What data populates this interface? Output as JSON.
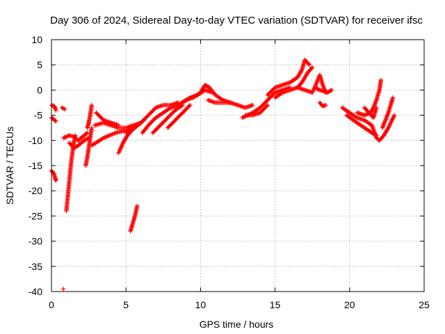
{
  "chart_data": {
    "type": "scatter",
    "title": "Day 306 of 2024, Sidereal Day-to-day VTEC variation (SDTVAR) for receiver ifsc",
    "xlabel": "GPS time / hours",
    "ylabel": "SDTVAR / TECUs",
    "xlim": [
      0,
      25
    ],
    "ylim": [
      -40,
      10
    ],
    "xticks": [
      0,
      5,
      10,
      15,
      20,
      25
    ],
    "yticks": [
      -40,
      -35,
      -30,
      -25,
      -20,
      -15,
      -10,
      -5,
      0,
      5,
      10
    ],
    "grid": true,
    "marker": "+",
    "color": "#ff0000",
    "series": [
      {
        "name": "SDTVAR",
        "segments": [
          [
            [
              0.0,
              -3.0
            ],
            [
              0.2,
              -3.2
            ],
            [
              0.3,
              -4.0
            ]
          ],
          [
            [
              0.0,
              -5.5
            ],
            [
              0.15,
              -5.8
            ],
            [
              0.3,
              -6.2
            ]
          ],
          [
            [
              0.0,
              -16.0
            ],
            [
              0.15,
              -16.5
            ],
            [
              0.25,
              -17.5
            ],
            [
              0.3,
              -18.0
            ]
          ],
          [
            [
              0.7,
              -3.5
            ],
            [
              0.9,
              -3.8
            ]
          ],
          [
            [
              0.8,
              -9.5
            ],
            [
              1.2,
              -9.0
            ],
            [
              1.5,
              -9.3
            ],
            [
              1.8,
              -10.0
            ],
            [
              2.0,
              -9.5
            ],
            [
              2.2,
              -9.0
            ],
            [
              2.4,
              -8.5
            ]
          ],
          [
            [
              1.2,
              -10.5
            ],
            [
              1.5,
              -11.5
            ],
            [
              1.8,
              -11.0
            ],
            [
              2.2,
              -10.0
            ],
            [
              2.5,
              -9.5
            ]
          ],
          [
            [
              1.0,
              -24.0
            ],
            [
              1.1,
              -21.0
            ],
            [
              1.2,
              -18.0
            ],
            [
              1.3,
              -15.0
            ],
            [
              1.4,
              -12.5
            ],
            [
              1.5,
              -10.5
            ],
            [
              1.6,
              -9.0
            ]
          ],
          [
            [
              2.3,
              -15.0
            ],
            [
              2.4,
              -13.5
            ],
            [
              2.5,
              -11.5
            ],
            [
              2.6,
              -9.5
            ],
            [
              2.7,
              -7.5
            ]
          ],
          [
            [
              2.4,
              -7.5
            ],
            [
              2.5,
              -6.5
            ],
            [
              2.6,
              -5.0
            ],
            [
              2.7,
              -3.0
            ]
          ],
          [
            [
              2.7,
              -11.0
            ],
            [
              3.5,
              -9.5
            ],
            [
              4.3,
              -8.5
            ],
            [
              5.0,
              -8.0
            ],
            [
              5.5,
              -7.5
            ]
          ],
          [
            [
              2.9,
              -7.0
            ],
            [
              3.5,
              -6.5
            ],
            [
              4.0,
              -7.0
            ],
            [
              4.5,
              -7.5
            ],
            [
              5.0,
              -7.5
            ],
            [
              5.5,
              -7.0
            ],
            [
              6.0,
              -6.5
            ]
          ],
          [
            [
              3.0,
              -4.5
            ],
            [
              3.5,
              -6.0
            ],
            [
              4.0,
              -6.5
            ],
            [
              4.5,
              -7.0
            ]
          ],
          [
            [
              4.5,
              -12.5
            ],
            [
              4.8,
              -10.5
            ],
            [
              5.1,
              -9.0
            ],
            [
              5.4,
              -8.0
            ],
            [
              5.8,
              -7.0
            ],
            [
              6.2,
              -6.0
            ]
          ],
          [
            [
              5.3,
              -28.0
            ],
            [
              5.45,
              -26.5
            ],
            [
              5.6,
              -25.0
            ],
            [
              5.75,
              -23.0
            ]
          ],
          [
            [
              5.0,
              -8.5
            ],
            [
              5.5,
              -7.5
            ],
            [
              6.0,
              -6.5
            ],
            [
              6.5,
              -5.0
            ],
            [
              7.0,
              -3.5
            ],
            [
              7.5,
              -3.0
            ],
            [
              8.0,
              -3.0
            ],
            [
              8.5,
              -2.5
            ]
          ],
          [
            [
              6.1,
              -8.5
            ],
            [
              6.5,
              -7.0
            ],
            [
              7.0,
              -5.5
            ],
            [
              7.5,
              -4.5
            ],
            [
              8.0,
              -3.5
            ],
            [
              8.5,
              -3.0
            ]
          ],
          [
            [
              6.8,
              -8.5
            ],
            [
              7.3,
              -7.0
            ],
            [
              7.8,
              -5.5
            ],
            [
              8.3,
              -4.0
            ],
            [
              8.8,
              -3.0
            ]
          ],
          [
            [
              7.8,
              -7.5
            ],
            [
              8.3,
              -6.0
            ],
            [
              8.8,
              -4.5
            ],
            [
              9.3,
              -3.0
            ]
          ],
          [
            [
              8.5,
              -3.0
            ],
            [
              9.0,
              -2.0
            ],
            [
              9.5,
              -1.5
            ],
            [
              10.0,
              -0.5
            ],
            [
              10.3,
              1.0
            ],
            [
              10.6,
              0.5
            ],
            [
              11.0,
              -1.0
            ],
            [
              11.5,
              -2.0
            ],
            [
              12.0,
              -2.5
            ]
          ],
          [
            [
              8.8,
              -2.5
            ],
            [
              9.3,
              -1.5
            ],
            [
              9.8,
              -1.0
            ],
            [
              10.3,
              0.0
            ],
            [
              10.8,
              -0.5
            ]
          ],
          [
            [
              10.5,
              -2.0
            ],
            [
              11.0,
              -2.5
            ],
            [
              11.5,
              -2.5
            ],
            [
              12.0,
              -2.5
            ],
            [
              12.5,
              -3.0
            ],
            [
              13.0,
              -3.5
            ],
            [
              13.5,
              -3.0
            ]
          ],
          [
            [
              12.8,
              -5.5
            ],
            [
              13.5,
              -4.5
            ],
            [
              14.0,
              -3.5
            ],
            [
              14.5,
              -2.0
            ],
            [
              15.0,
              -0.5
            ],
            [
              15.5,
              0.0
            ],
            [
              16.0,
              0.5
            ]
          ],
          [
            [
              13.0,
              -5.0
            ],
            [
              13.5,
              -5.0
            ],
            [
              14.0,
              -4.5
            ],
            [
              14.5,
              -3.0
            ]
          ],
          [
            [
              14.5,
              -1.0
            ],
            [
              15.0,
              0.5
            ],
            [
              15.5,
              1.0
            ],
            [
              16.0,
              1.5
            ],
            [
              16.5,
              2.5
            ],
            [
              16.8,
              4.0
            ],
            [
              17.0,
              6.0
            ],
            [
              17.3,
              5.0
            ]
          ],
          [
            [
              15.0,
              -1.5
            ],
            [
              15.5,
              -0.5
            ],
            [
              16.0,
              0.0
            ],
            [
              16.5,
              0.5
            ],
            [
              16.8,
              1.5
            ],
            [
              17.2,
              3.5
            ],
            [
              17.5,
              4.5
            ]
          ],
          [
            [
              16.5,
              0.5
            ],
            [
              17.0,
              0.0
            ],
            [
              17.5,
              -0.5
            ],
            [
              17.8,
              1.5
            ],
            [
              18.0,
              3.0
            ],
            [
              18.2,
              1.0
            ],
            [
              18.4,
              -0.5
            ]
          ],
          [
            [
              17.7,
              0.5
            ],
            [
              18.0,
              0.0
            ],
            [
              18.5,
              -0.5
            ],
            [
              18.8,
              0.0
            ]
          ],
          [
            [
              18.0,
              -2.5
            ],
            [
              18.2,
              -3.2
            ],
            [
              18.4,
              -3.0
            ]
          ],
          [
            [
              19.5,
              -3.5
            ],
            [
              20.0,
              -4.5
            ],
            [
              20.5,
              -5.5
            ],
            [
              21.0,
              -6.0
            ],
            [
              21.5,
              -7.0
            ],
            [
              21.8,
              -9.5
            ],
            [
              22.0,
              -10.0
            ],
            [
              22.3,
              -9.0
            ],
            [
              22.6,
              -7.5
            ],
            [
              23.0,
              -5.0
            ]
          ],
          [
            [
              19.8,
              -5.0
            ],
            [
              20.5,
              -6.5
            ],
            [
              21.0,
              -7.5
            ],
            [
              21.5,
              -8.5
            ],
            [
              21.8,
              -9.0
            ]
          ],
          [
            [
              20.5,
              -4.5
            ],
            [
              21.0,
              -5.0
            ],
            [
              21.4,
              -4.5
            ],
            [
              21.6,
              -3.5
            ],
            [
              21.8,
              -2.0
            ],
            [
              22.0,
              0.0
            ],
            [
              22.1,
              2.0
            ]
          ],
          [
            [
              21.0,
              -3.5
            ],
            [
              21.3,
              -4.5
            ],
            [
              21.6,
              -5.5
            ],
            [
              21.8,
              -3.5
            ]
          ],
          [
            [
              22.2,
              -7.5
            ],
            [
              22.4,
              -6.0
            ],
            [
              22.6,
              -4.5
            ],
            [
              22.8,
              -2.5
            ],
            [
              22.9,
              -1.5
            ]
          ],
          [
            [
              0.8,
              -39.5
            ]
          ]
        ]
      }
    ]
  }
}
